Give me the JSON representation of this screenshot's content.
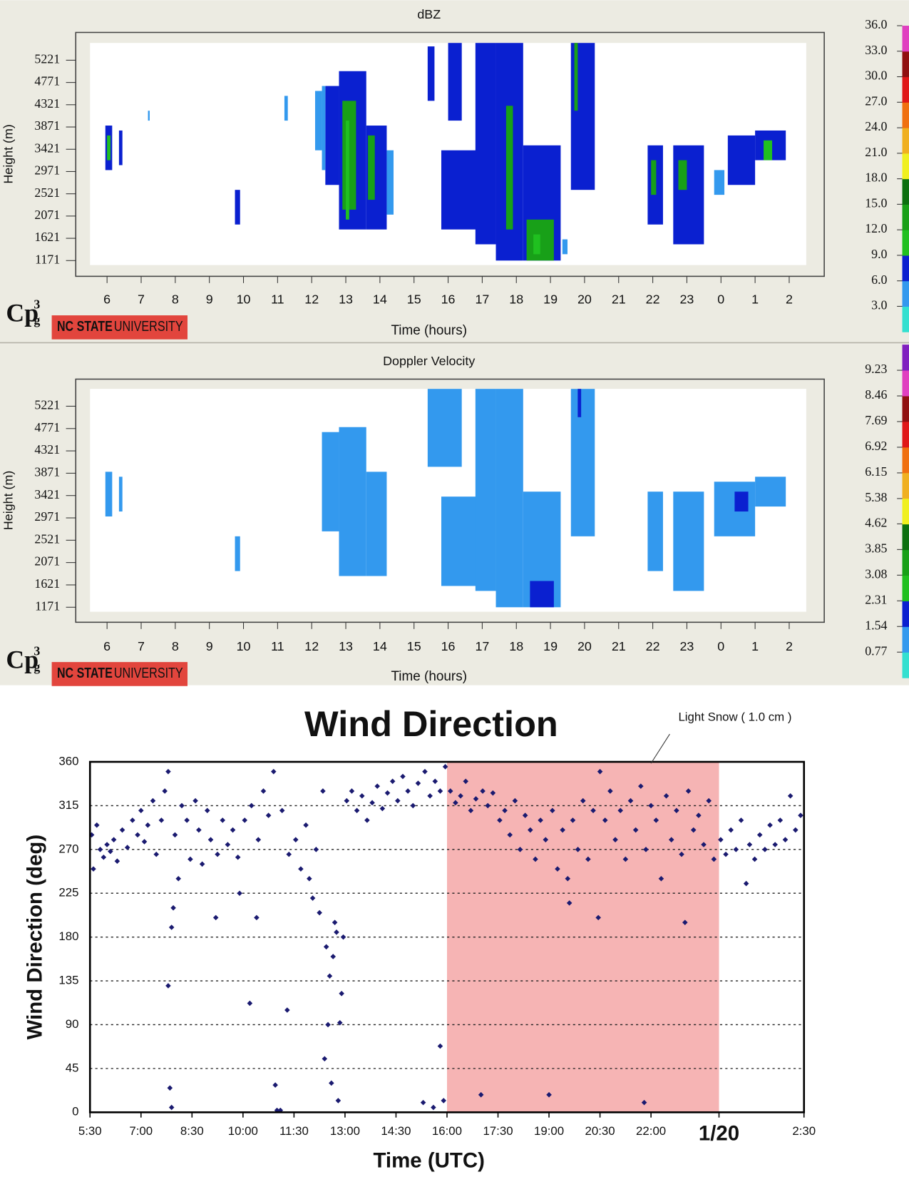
{
  "chart_data": [
    {
      "type": "heatmap",
      "title": "dBZ",
      "xlabel": "Time (hours)",
      "ylabel": "Height (m)",
      "logo": "Cp",
      "logo_sup": "3",
      "logo_sub": "g",
      "badge": [
        "NC STATE",
        "UNIVERSITY"
      ],
      "xlim": [
        5.5,
        26.5
      ],
      "xticks": [
        6,
        7,
        8,
        9,
        10,
        11,
        12,
        13,
        14,
        15,
        16,
        17,
        18,
        19,
        20,
        21,
        22,
        23,
        {
          "value": 24,
          "label": "0"
        },
        {
          "value": 25,
          "label": "1"
        },
        {
          "value": 26,
          "label": "2"
        }
      ],
      "ylim": [
        1080,
        5570
      ],
      "yticks": [
        1171,
        1621,
        2071,
        2521,
        2971,
        3421,
        3871,
        4321,
        4771,
        5221
      ],
      "colorbar": {
        "lim": [
          0,
          36
        ],
        "ticks": [
          {
            "value": 3,
            "label": "3.0"
          },
          {
            "value": 6,
            "label": "6.0"
          },
          {
            "value": 9,
            "label": "9.0"
          },
          {
            "value": 12,
            "label": "12.0"
          },
          {
            "value": 15,
            "label": "15.0"
          },
          {
            "value": 18,
            "label": "18.0"
          },
          {
            "value": 21,
            "label": "21.0"
          },
          {
            "value": 24,
            "label": "24.0"
          },
          {
            "value": 27,
            "label": "27.0"
          },
          {
            "value": 30,
            "label": "30.0"
          },
          {
            "value": 33,
            "label": "33.0"
          },
          {
            "value": 36,
            "label": "36.0"
          }
        ],
        "colors": [
          "#33e0d0",
          "#3399ee",
          "#0a20d0",
          "#20c020",
          "#18a018",
          "#0c7010",
          "#f0f020",
          "#f0b020",
          "#f07010",
          "#e01818",
          "#901010",
          "#e040c0"
        ]
      },
      "cells": {
        "x": [
          5.95,
          6.0,
          6.35,
          9.75,
          12.4,
          12.8,
          12.9,
          13.0,
          13.6,
          13.65,
          15.4,
          16.0,
          15.8,
          16.8,
          17.4,
          17.7,
          18.2,
          18.3,
          18.5,
          19.6,
          19.7,
          21.85,
          21.95,
          22.6,
          22.75,
          23.8,
          24.2,
          25.0,
          25.25,
          11.2,
          7.2,
          12.1,
          12.3,
          14.2,
          19.35
        ],
        "x2": [
          6.15,
          6.1,
          6.45,
          9.9,
          12.8,
          13.6,
          13.3,
          13.1,
          14.2,
          13.85,
          15.6,
          16.4,
          16.9,
          17.4,
          18.2,
          17.9,
          19.3,
          19.1,
          18.7,
          20.3,
          19.8,
          22.3,
          22.1,
          23.5,
          23.0,
          24.1,
          25.0,
          25.9,
          25.5,
          11.3,
          7.25,
          12.3,
          12.4,
          14.4,
          19.5
        ],
        "y": [
          3000,
          3200,
          3100,
          1900,
          2700,
          1800,
          2200,
          2000,
          1800,
          2400,
          4400,
          4000,
          1800,
          1500,
          1171,
          1800,
          1171,
          1171,
          1300,
          2600,
          4200,
          1900,
          2500,
          1500,
          2600,
          2500,
          2700,
          3200,
          3200,
          4000,
          4000,
          3400,
          3000,
          2100,
          1300
        ],
        "y2": [
          3900,
          3700,
          3800,
          2600,
          4700,
          5000,
          4400,
          4000,
          3900,
          3700,
          5500,
          5570,
          3400,
          5570,
          5570,
          4300,
          3500,
          2000,
          1700,
          5570,
          5570,
          3500,
          3200,
          3500,
          3200,
          3000,
          3700,
          3800,
          3600,
          4500,
          4200,
          4600,
          4700,
          3400,
          1600
        ],
        "values": [
          7.5,
          10.5,
          7.5,
          7.5,
          7.5,
          7.5,
          13,
          10.5,
          7.5,
          13,
          7.5,
          7.5,
          7.5,
          7.5,
          7.5,
          13,
          7.5,
          13,
          10.5,
          7.5,
          13,
          7.5,
          13,
          7.5,
          13,
          4.5,
          7.5,
          7.5,
          10.5,
          4.5,
          4.5,
          4.5,
          4.5,
          4.5,
          4.5
        ]
      }
    },
    {
      "type": "heatmap",
      "title": "Doppler Velocity",
      "xlabel": "Time (hours)",
      "ylabel": "Height (m)",
      "logo": "Cp",
      "logo_sup": "3",
      "logo_sub": "g",
      "badge": [
        "NC STATE",
        "UNIVERSITY"
      ],
      "xlim": [
        5.5,
        26.5
      ],
      "xticks": [
        6,
        7,
        8,
        9,
        10,
        11,
        12,
        13,
        14,
        15,
        16,
        17,
        18,
        19,
        20,
        21,
        22,
        23,
        {
          "value": 24,
          "label": "0"
        },
        {
          "value": 25,
          "label": "1"
        },
        {
          "value": 26,
          "label": "2"
        }
      ],
      "ylim": [
        1080,
        5570
      ],
      "yticks": [
        1171,
        1621,
        2071,
        2521,
        2971,
        3421,
        3871,
        4321,
        4771,
        5221
      ],
      "colorbar": {
        "lim": [
          0,
          10
        ],
        "ticks": [
          0.77,
          1.54,
          2.31,
          3.08,
          3.85,
          4.62,
          5.38,
          6.15,
          6.92,
          7.69,
          8.46,
          9.23
        ],
        "colors": [
          "#33e0d0",
          "#3399ee",
          "#0a20d0",
          "#20c020",
          "#18a018",
          "#0c7010",
          "#f0f020",
          "#f0b020",
          "#f07010",
          "#e01818",
          "#901010",
          "#e040c0",
          "#8020c0"
        ]
      },
      "cells": {
        "x": [
          5.95,
          6.35,
          9.75,
          12.3,
          12.8,
          13.6,
          15.4,
          15.8,
          16.8,
          17.4,
          18.2,
          18.4,
          19.6,
          21.85,
          22.6,
          23.8,
          24.4,
          25.0,
          19.8
        ],
        "x2": [
          6.15,
          6.45,
          9.9,
          12.8,
          13.6,
          14.2,
          16.4,
          16.9,
          17.4,
          18.2,
          19.3,
          19.1,
          20.3,
          22.3,
          23.5,
          25.0,
          24.8,
          25.9,
          19.9
        ],
        "y": [
          3000,
          3100,
          1900,
          2700,
          1800,
          1800,
          4000,
          1600,
          1500,
          1171,
          1171,
          1171,
          2600,
          1900,
          1500,
          2600,
          3100,
          3200,
          5000
        ],
        "y2": [
          3900,
          3800,
          2600,
          4700,
          4800,
          3900,
          5570,
          3400,
          5570,
          5570,
          3500,
          1700,
          5570,
          3500,
          3500,
          3700,
          3500,
          3800,
          5570
        ],
        "values": [
          1.2,
          1.2,
          1.2,
          1.2,
          1.2,
          1.2,
          1.2,
          1.2,
          1.2,
          1.2,
          1.2,
          1.8,
          1.2,
          1.2,
          1.2,
          1.2,
          1.8,
          1.2,
          1.8
        ]
      }
    },
    {
      "type": "scatter",
      "title": "Wind Direction",
      "xlabel": "Time (UTC)",
      "ylabel": "Wind Direction (deg)",
      "annotation": "Light Snow ( 1.0 cm )",
      "xlim": [
        5.5,
        26.5
      ],
      "xticks": [
        {
          "value": 5.5,
          "label": "5:30"
        },
        {
          "value": 7,
          "label": "7:00"
        },
        {
          "value": 8.5,
          "label": "8:30"
        },
        {
          "value": 10,
          "label": "10:00"
        },
        {
          "value": 11.5,
          "label": "11:30"
        },
        {
          "value": 13,
          "label": "13:00"
        },
        {
          "value": 14.5,
          "label": "14:30"
        },
        {
          "value": 16,
          "label": "16:00"
        },
        {
          "value": 17.5,
          "label": "17:30"
        },
        {
          "value": 19,
          "label": "19:00"
        },
        {
          "value": 20.5,
          "label": "20:30"
        },
        {
          "value": 22,
          "label": "22:00"
        },
        {
          "value": 24,
          "label": "1/20"
        },
        {
          "value": 26.5,
          "label": "2:30"
        }
      ],
      "xtick_bold": [
        24
      ],
      "ylim": [
        0,
        360
      ],
      "yticks": [
        0,
        45,
        90,
        135,
        180,
        225,
        270,
        315,
        360
      ],
      "grid": true,
      "shade": {
        "x": [
          16,
          24
        ],
        "color": "#f6b4b4"
      },
      "color": "#1a1a70",
      "x": [
        5.55,
        5.6,
        5.7,
        5.8,
        5.9,
        6.0,
        6.1,
        6.2,
        6.3,
        6.45,
        6.6,
        6.75,
        6.9,
        7.0,
        7.1,
        7.2,
        7.35,
        7.45,
        7.6,
        7.7,
        7.8,
        7.8,
        7.85,
        7.9,
        7.9,
        7.95,
        8.0,
        8.1,
        8.2,
        8.35,
        8.45,
        8.6,
        8.7,
        8.8,
        8.95,
        9.05,
        9.2,
        9.25,
        9.4,
        9.55,
        9.7,
        9.85,
        9.9,
        10.05,
        10.2,
        10.25,
        10.4,
        10.45,
        10.6,
        10.75,
        10.9,
        10.95,
        11.0,
        11.1,
        11.15,
        11.3,
        11.35,
        11.55,
        11.7,
        11.85,
        11.95,
        12.05,
        12.15,
        12.25,
        12.35,
        12.4,
        12.45,
        12.5,
        12.55,
        12.6,
        12.65,
        12.7,
        12.75,
        12.8,
        12.85,
        12.9,
        12.95,
        13.05,
        13.2,
        13.35,
        13.5,
        13.65,
        13.8,
        13.95,
        14.1,
        14.25,
        14.4,
        14.55,
        14.7,
        14.85,
        15.0,
        15.15,
        15.3,
        15.35,
        15.5,
        15.6,
        15.65,
        15.8,
        15.8,
        15.9,
        15.95,
        16.1,
        16.25,
        16.4,
        16.55,
        16.7,
        16.85,
        17.0,
        17.05,
        17.2,
        17.35,
        17.55,
        17.7,
        17.85,
        18.0,
        18.15,
        18.3,
        18.45,
        18.6,
        18.75,
        18.9,
        19.0,
        19.1,
        19.25,
        19.4,
        19.55,
        19.6,
        19.7,
        19.85,
        20.0,
        20.15,
        20.3,
        20.45,
        20.5,
        20.65,
        20.8,
        20.95,
        21.1,
        21.25,
        21.4,
        21.55,
        21.7,
        21.8,
        21.85,
        22.0,
        22.3,
        22.15,
        22.45,
        22.6,
        22.75,
        22.9,
        23.0,
        23.1,
        23.25,
        23.4,
        23.55,
        23.7,
        23.85,
        24.05,
        24.2,
        24.35,
        24.5,
        24.65,
        24.8,
        24.9,
        25.05,
        25.2,
        25.35,
        25.5,
        25.65,
        25.8,
        25.95,
        26.1,
        26.25,
        26.4
      ],
      "values": [
        285,
        250,
        295,
        270,
        262,
        275,
        268,
        280,
        258,
        290,
        272,
        300,
        285,
        310,
        278,
        295,
        320,
        265,
        300,
        330,
        350,
        130,
        25,
        5,
        190,
        210,
        285,
        240,
        315,
        300,
        260,
        320,
        290,
        255,
        310,
        280,
        200,
        265,
        300,
        275,
        290,
        262,
        225,
        300,
        112,
        315,
        200,
        280,
        330,
        305,
        350,
        28,
        2,
        2,
        310,
        105,
        265,
        280,
        250,
        295,
        240,
        220,
        270,
        205,
        330,
        55,
        170,
        90,
        140,
        30,
        160,
        195,
        185,
        12,
        92,
        122,
        180,
        320,
        330,
        310,
        325,
        300,
        318,
        335,
        312,
        328,
        340,
        320,
        345,
        330,
        315,
        338,
        10,
        350,
        325,
        5,
        340,
        68,
        330,
        12,
        355,
        330,
        318,
        325,
        340,
        310,
        322,
        18,
        330,
        315,
        328,
        300,
        310,
        285,
        320,
        270,
        305,
        290,
        260,
        300,
        280,
        18,
        310,
        250,
        290,
        240,
        215,
        300,
        270,
        320,
        260,
        310,
        200,
        350,
        300,
        330,
        280,
        310,
        260,
        320,
        290,
        335,
        10,
        270,
        315,
        240,
        300,
        325,
        280,
        310,
        265,
        195,
        330,
        290,
        305,
        275,
        320,
        260,
        280,
        265,
        290,
        270,
        300,
        235,
        275,
        260,
        285,
        270,
        295,
        275,
        300,
        280,
        325,
        290,
        305
      ]
    }
  ]
}
